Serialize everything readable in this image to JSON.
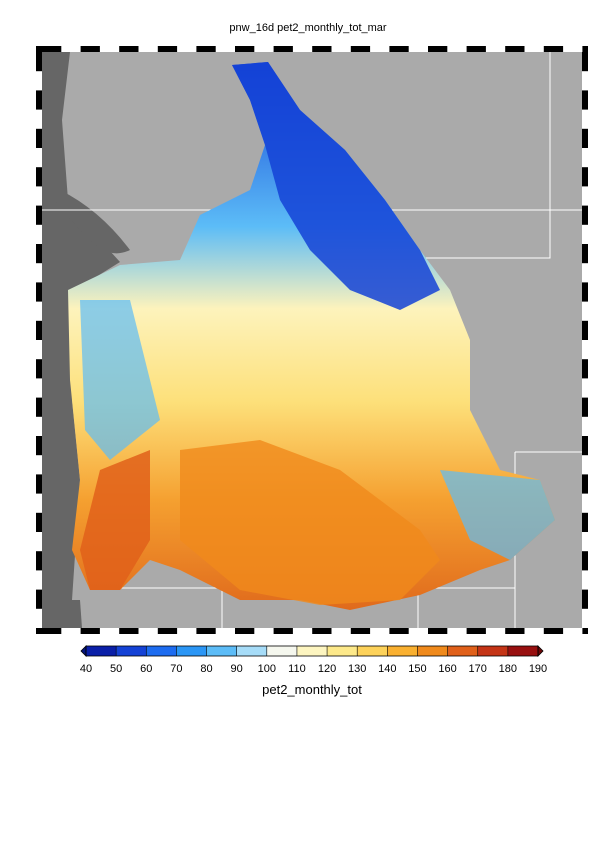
{
  "title": "pnw_16d pet2_monthly_tot_mar",
  "colorbar": {
    "label": "pet2_monthly_tot",
    "ticks": [
      40,
      50,
      60,
      70,
      80,
      90,
      100,
      110,
      120,
      130,
      140,
      150,
      160,
      170,
      180,
      190
    ],
    "colors": [
      "#0a1fa8",
      "#1442d6",
      "#1d6cf0",
      "#2b96f5",
      "#5cbcf7",
      "#a6dcf8",
      "#f5f7ee",
      "#fdf5c0",
      "#fde98a",
      "#fdd25a",
      "#f9b030",
      "#f08a1c",
      "#e0601a",
      "#c43416",
      "#981010"
    ],
    "under_color": "#06157a",
    "over_color": "#6e0808"
  }
}
